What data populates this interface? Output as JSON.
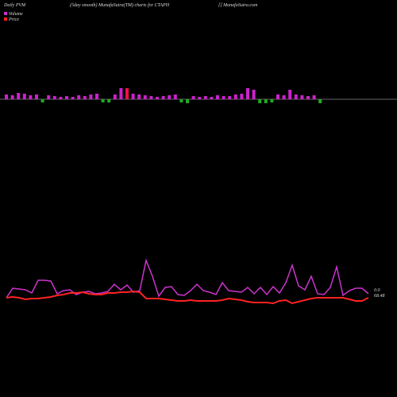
{
  "header": {
    "left": "Daily PVM",
    "center": "(5day smooth) MunafaSutra(TM) charts for CTAPH",
    "right": "[] MunafaSutra.com"
  },
  "chart_data": [
    {
      "type": "bar",
      "ylim": [
        -20,
        20
      ],
      "values": [
        6,
        5,
        8,
        7,
        5,
        6,
        -4,
        5,
        4,
        3,
        4,
        3,
        5,
        4,
        6,
        7,
        -4,
        -4,
        6,
        14,
        14,
        7,
        6,
        5,
        4,
        3,
        4,
        5,
        6,
        -4,
        -5,
        4,
        3,
        4,
        3,
        5,
        4,
        4,
        6,
        7,
        14,
        12,
        -5,
        -5,
        -4,
        6,
        5,
        12,
        6,
        5,
        4,
        5,
        -5
      ],
      "colors": [
        "#cc22cc",
        "#cc22cc",
        "#cc22cc",
        "#cc22cc",
        "#cc22cc",
        "#cc22cc",
        "#22aa22",
        "#cc22cc",
        "#cc22cc",
        "#cc22cc",
        "#cc22cc",
        "#cc22cc",
        "#cc22cc",
        "#cc22cc",
        "#cc22cc",
        "#cc22cc",
        "#22aa22",
        "#22aa22",
        "#cc22cc",
        "#cc22cc",
        "#ee1144",
        "#cc22cc",
        "#cc22cc",
        "#cc22cc",
        "#cc22cc",
        "#cc22cc",
        "#cc22cc",
        "#cc22cc",
        "#cc22cc",
        "#22aa22",
        "#22aa22",
        "#cc22cc",
        "#cc22cc",
        "#cc22cc",
        "#cc22cc",
        "#cc22cc",
        "#cc22cc",
        "#cc22cc",
        "#cc22cc",
        "#cc22cc",
        "#cc22cc",
        "#cc22cc",
        "#22aa22",
        "#22aa22",
        "#22aa22",
        "#cc22cc",
        "#cc22cc",
        "#cc22cc",
        "#cc22cc",
        "#cc22cc",
        "#cc22cc",
        "#cc22cc",
        "#22aa22"
      ]
    },
    {
      "type": "line",
      "ylim": [
        0,
        100
      ],
      "series": [
        {
          "name": "Volume",
          "color": "#cc33cc",
          "values": [
            25,
            37,
            36,
            35,
            31,
            47,
            47,
            46,
            30,
            34,
            35,
            29,
            32,
            33,
            30,
            31,
            33,
            42,
            35,
            41,
            32,
            34,
            72,
            52,
            27,
            38,
            39,
            29,
            28,
            34,
            42,
            34,
            32,
            29,
            44,
            34,
            33,
            32,
            38,
            30,
            38,
            29,
            39,
            31,
            44,
            66,
            40,
            35,
            52,
            30,
            29,
            38,
            64,
            28,
            34,
            37,
            37,
            30
          ]
        },
        {
          "name": "Price",
          "color": "#ff2222",
          "values": [
            25,
            26,
            25,
            23,
            24,
            24,
            25,
            26,
            28,
            29,
            31,
            31,
            32,
            30,
            29,
            29,
            31,
            31,
            32,
            32,
            33,
            32,
            24,
            24,
            24,
            23,
            22,
            21,
            21,
            22,
            21,
            21,
            21,
            21,
            22,
            24,
            23,
            22,
            20,
            19,
            19,
            19,
            18,
            21,
            22,
            18,
            20,
            22,
            24,
            25,
            25,
            25,
            25,
            25,
            23,
            21,
            21,
            25
          ]
        }
      ],
      "end_labels": [
        "0.0",
        "68.48"
      ]
    }
  ]
}
